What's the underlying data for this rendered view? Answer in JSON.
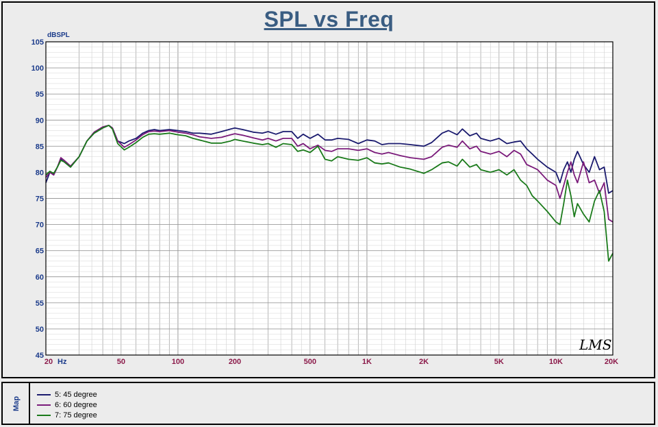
{
  "chart_data": {
    "type": "line",
    "title": "SPL vs Freq",
    "ylabel": "dBSPL",
    "xunit": "Hz",
    "xscale": "log",
    "xlim": [
      20,
      20000
    ],
    "ylim": [
      45,
      105
    ],
    "grid": true,
    "yticks": [
      45,
      50,
      55,
      60,
      65,
      70,
      75,
      80,
      85,
      90,
      95,
      100,
      105
    ],
    "yticklabels": [
      "45",
      "50",
      "55",
      "60",
      "65",
      "70",
      "75",
      "80",
      "85",
      "90",
      "95",
      "100",
      "105"
    ],
    "xticks": [
      20,
      50,
      100,
      200,
      500,
      1000,
      2000,
      5000,
      10000,
      20000
    ],
    "xticklabels": [
      "20",
      "50",
      "100",
      "200",
      "500",
      "1K",
      "2K",
      "5K",
      "10K",
      "20K"
    ],
    "watermark": "LMS",
    "legend_title": "Map",
    "legend_position": "bottom-left",
    "series": [
      {
        "name": "5: 45 degree",
        "color": "#1a1a6e",
        "x": [
          20,
          21,
          22,
          23,
          24,
          25,
          27,
          30,
          33,
          36,
          40,
          43,
          45,
          48,
          52,
          55,
          60,
          65,
          70,
          75,
          80,
          90,
          100,
          110,
          120,
          130,
          150,
          170,
          190,
          200,
          220,
          250,
          280,
          300,
          330,
          360,
          400,
          430,
          460,
          500,
          550,
          600,
          650,
          700,
          800,
          900,
          1000,
          1100,
          1200,
          1300,
          1500,
          1700,
          2000,
          2200,
          2500,
          2700,
          3000,
          3200,
          3500,
          3800,
          4000,
          4500,
          5000,
          5500,
          6000,
          6500,
          7000,
          7500,
          8000,
          9000,
          10000,
          10500,
          11000,
          11500,
          12000,
          12500,
          13000,
          14000,
          15000,
          16000,
          17000,
          18000,
          19000,
          20000
        ],
        "y": [
          78,
          80,
          79.5,
          81,
          82.5,
          82,
          81,
          83,
          86,
          87.5,
          88.5,
          89,
          88.5,
          86,
          85.5,
          86,
          86.5,
          87.5,
          88,
          88.2,
          88,
          88.2,
          88,
          87.8,
          87.5,
          87.5,
          87.3,
          87.8,
          88.3,
          88.5,
          88.2,
          87.7,
          87.5,
          87.8,
          87.3,
          87.8,
          87.8,
          86.5,
          87.3,
          86.5,
          87.3,
          86.2,
          86.2,
          86.5,
          86.3,
          85.5,
          86.2,
          86.0,
          85.3,
          85.5,
          85.5,
          85.3,
          85.0,
          85.7,
          87.5,
          88.0,
          87.2,
          88.3,
          87.0,
          87.5,
          86.5,
          86.0,
          86.5,
          85.5,
          85.8,
          86.0,
          84.5,
          83.5,
          82.5,
          81.0,
          80.0,
          78.0,
          80.5,
          82.0,
          80.0,
          82.5,
          84.0,
          81.5,
          80.0,
          83.0,
          80.5,
          81.0,
          76.0,
          76.5
        ]
      },
      {
        "name": "6: 60 degree",
        "color": "#7a1a7a",
        "x": [
          20,
          21,
          22,
          23,
          24,
          25,
          27,
          30,
          33,
          36,
          40,
          43,
          45,
          48,
          52,
          55,
          60,
          65,
          70,
          75,
          80,
          90,
          100,
          110,
          120,
          130,
          150,
          170,
          190,
          200,
          220,
          250,
          280,
          300,
          330,
          360,
          400,
          430,
          460,
          500,
          550,
          600,
          650,
          700,
          800,
          900,
          1000,
          1100,
          1200,
          1300,
          1500,
          1700,
          2000,
          2200,
          2500,
          2700,
          3000,
          3200,
          3500,
          3800,
          4000,
          4500,
          5000,
          5500,
          6000,
          6500,
          7000,
          7500,
          8000,
          9000,
          10000,
          10500,
          11000,
          11500,
          12000,
          12500,
          13000,
          14000,
          15000,
          16000,
          17000,
          18000,
          19000,
          20000
        ],
        "y": [
          79,
          80,
          79.5,
          81,
          82.8,
          82.3,
          81.2,
          83,
          86,
          87.7,
          88.7,
          89,
          88.5,
          86,
          84.8,
          85.3,
          86.2,
          87.2,
          87.8,
          87.9,
          87.8,
          88.0,
          87.7,
          87.5,
          87.2,
          86.8,
          86.5,
          86.7,
          87.2,
          87.4,
          87.1,
          86.6,
          86.2,
          86.5,
          86.0,
          86.5,
          86.5,
          85.0,
          85.5,
          84.5,
          85.2,
          84.2,
          84.0,
          84.5,
          84.5,
          84.2,
          84.5,
          83.8,
          83.5,
          83.8,
          83.2,
          82.8,
          82.5,
          83.0,
          84.8,
          85.2,
          84.8,
          86.0,
          84.5,
          85.0,
          84.0,
          83.5,
          84.0,
          83.0,
          84.2,
          83.5,
          81.5,
          81.0,
          80.5,
          78.5,
          77.5,
          75.0,
          77.5,
          80.0,
          82.0,
          79.5,
          78.0,
          82.0,
          78.0,
          78.5,
          76.0,
          78.0,
          71.0,
          70.5
        ]
      },
      {
        "name": "7: 75 degree",
        "color": "#1a7a1a",
        "x": [
          20,
          21,
          22,
          23,
          24,
          25,
          27,
          30,
          33,
          36,
          40,
          43,
          45,
          48,
          52,
          55,
          60,
          65,
          70,
          75,
          80,
          90,
          100,
          110,
          120,
          130,
          150,
          170,
          190,
          200,
          220,
          250,
          280,
          300,
          330,
          360,
          400,
          430,
          460,
          500,
          550,
          600,
          650,
          700,
          800,
          900,
          1000,
          1100,
          1200,
          1300,
          1500,
          1700,
          2000,
          2200,
          2500,
          2700,
          3000,
          3200,
          3500,
          3800,
          4000,
          4500,
          5000,
          5500,
          6000,
          6500,
          7000,
          7500,
          8000,
          9000,
          10000,
          10500,
          11000,
          11500,
          12000,
          12500,
          13000,
          14000,
          15000,
          16000,
          17000,
          18000,
          19000,
          20000
        ],
        "y": [
          79.5,
          80.2,
          79.8,
          81,
          82.3,
          82,
          81,
          83,
          86,
          87.5,
          88.5,
          89,
          88.3,
          85.5,
          84.3,
          84.8,
          85.7,
          86.7,
          87.3,
          87.4,
          87.3,
          87.5,
          87.2,
          87.0,
          86.5,
          86.2,
          85.6,
          85.6,
          86.0,
          86.3,
          86.0,
          85.6,
          85.3,
          85.5,
          84.8,
          85.5,
          85.3,
          84.0,
          84.3,
          83.8,
          85.0,
          82.5,
          82.2,
          83.0,
          82.5,
          82.3,
          82.8,
          81.8,
          81.6,
          81.8,
          81.0,
          80.6,
          79.8,
          80.5,
          81.8,
          82.0,
          81.2,
          82.5,
          81.0,
          81.5,
          80.5,
          80.0,
          80.5,
          79.5,
          80.5,
          78.5,
          77.5,
          75.5,
          74.5,
          72.5,
          70.5,
          70.0,
          74.0,
          78.5,
          75.5,
          71.5,
          74.0,
          72.0,
          70.5,
          74.5,
          76.5,
          72.5,
          63.0,
          64.5
        ]
      }
    ]
  }
}
